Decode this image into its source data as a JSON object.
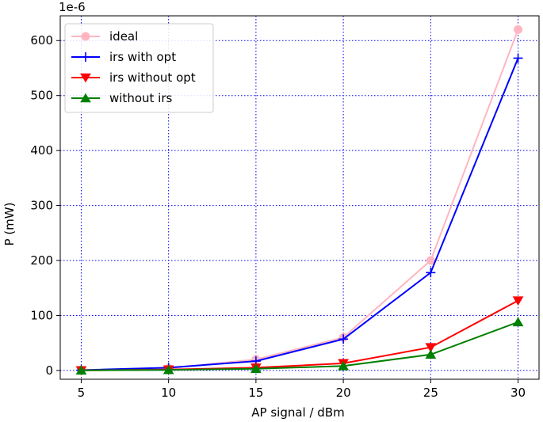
{
  "chart_data": {
    "type": "line",
    "x": [
      5,
      10,
      15,
      20,
      25,
      30
    ],
    "xlabel": "AP signal / dBm",
    "ylabel": "P (mW)",
    "offset_text": "1e-6",
    "xlim": [
      3.8,
      31.2
    ],
    "ylim": [
      -16,
      645
    ],
    "xticks": [
      5,
      10,
      15,
      20,
      25,
      30
    ],
    "yticks": [
      0,
      100,
      200,
      300,
      400,
      500,
      600
    ],
    "grid": true,
    "legend_position": "top-left",
    "series": [
      {
        "name": "ideal",
        "color": "#ffb6c1",
        "marker": "circle",
        "values": [
          0.5,
          4,
          20,
          60,
          200,
          620
        ]
      },
      {
        "name": "irs with opt",
        "color": "#0000ff",
        "marker": "plus",
        "values": [
          0.5,
          5,
          17,
          57,
          178,
          568
        ]
      },
      {
        "name": "irs without opt",
        "color": "#ff0000",
        "marker": "triangle-down",
        "values": [
          0.2,
          1.5,
          5,
          13,
          42,
          127
        ]
      },
      {
        "name": "without irs",
        "color": "#008000",
        "marker": "triangle-up",
        "values": [
          0.1,
          1,
          3,
          8,
          29,
          88
        ]
      }
    ]
  }
}
